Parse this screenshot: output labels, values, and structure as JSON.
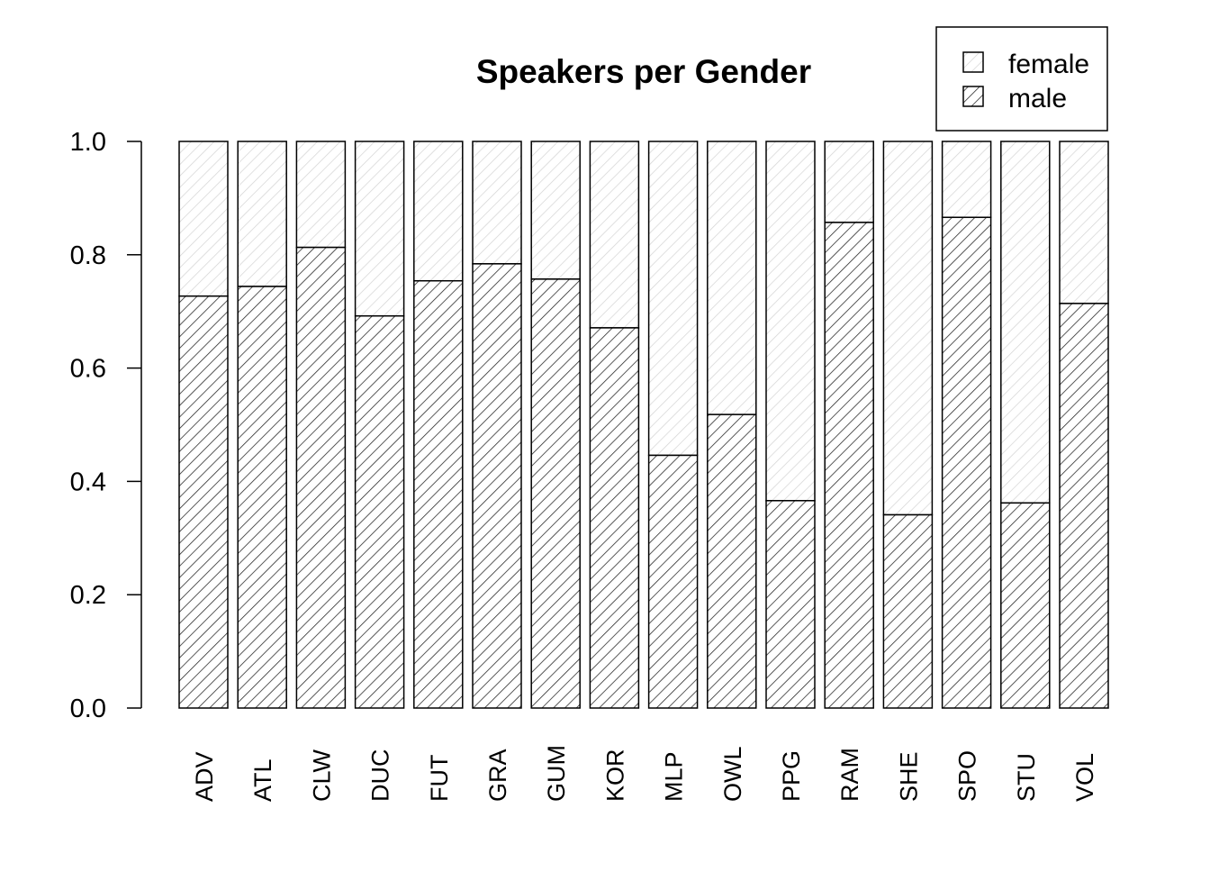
{
  "chart_data": {
    "type": "bar",
    "stacked": true,
    "title": "Speakers per Gender",
    "xlabel": "",
    "ylabel": "",
    "ylim": [
      0,
      1
    ],
    "yticks": [
      "0.0",
      "0.2",
      "0.4",
      "0.6",
      "0.8",
      "1.0"
    ],
    "categories": [
      "ADV",
      "ATL",
      "CLW",
      "DUC",
      "FUT",
      "GRA",
      "GUM",
      "KOR",
      "MLP",
      "OWL",
      "PPG",
      "RAM",
      "SHE",
      "SPO",
      "STU",
      "VOL"
    ],
    "series": [
      {
        "name": "male",
        "pattern": "dense-hatch",
        "values": [
          0.727,
          0.744,
          0.813,
          0.692,
          0.754,
          0.784,
          0.757,
          0.671,
          0.446,
          0.518,
          0.366,
          0.857,
          0.341,
          0.866,
          0.362,
          0.714
        ]
      },
      {
        "name": "female",
        "pattern": "light-hatch",
        "values": [
          0.273,
          0.256,
          0.187,
          0.308,
          0.246,
          0.216,
          0.243,
          0.329,
          0.554,
          0.482,
          0.634,
          0.143,
          0.659,
          0.134,
          0.638,
          0.286
        ]
      }
    ],
    "legend": {
      "position": "top-right",
      "entries": [
        "female",
        "male"
      ]
    },
    "grid": false
  }
}
